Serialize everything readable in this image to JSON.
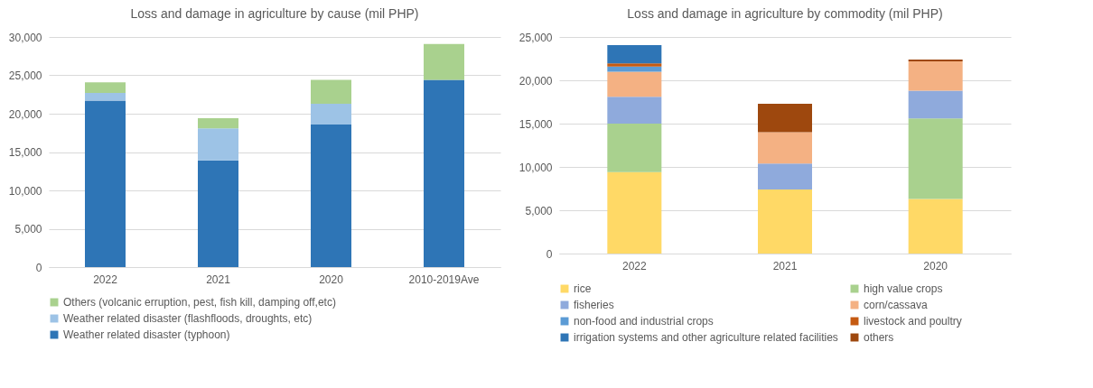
{
  "chart_data": [
    {
      "type": "bar",
      "stacked": true,
      "title": "Loss and damage in agriculture by cause (mil PHP)",
      "categories": [
        "2022",
        "2021",
        "2020",
        "2010-2019Ave"
      ],
      "series": [
        {
          "name": "Weather related disaster (typhoon)",
          "color": "#2e75b6",
          "values": [
            21700,
            13900,
            18600,
            24400
          ]
        },
        {
          "name": "Weather related disaster (flashfloods, droughts, etc)",
          "color": "#9dc3e6",
          "values": [
            1000,
            4200,
            2700,
            null
          ]
        },
        {
          "name": "Others (volcanic erruption, pest, fish kill, damping off,etc)",
          "color": "#a9d18e",
          "values": [
            1400,
            1300,
            3100,
            4700
          ]
        }
      ],
      "ylim": [
        0,
        30000
      ],
      "yticks": [
        {
          "value": 0,
          "label": "0"
        },
        {
          "value": 5000,
          "label": "5,000"
        },
        {
          "value": 10000,
          "label": "10,000"
        },
        {
          "value": 15000,
          "label": "15,000"
        },
        {
          "value": 20000,
          "label": "20,000"
        },
        {
          "value": 25000,
          "label": "25,000"
        },
        {
          "value": 30000,
          "label": "30,000"
        }
      ],
      "grid": "y",
      "legend": "bottom"
    },
    {
      "type": "bar",
      "stacked": true,
      "title": "Loss and damage in agriculture by commodity (mil PHP)",
      "categories": [
        "2022",
        "2021",
        "2020"
      ],
      "series": [
        {
          "name": "rice",
          "color": "#ffd966",
          "values": [
            9400,
            7400,
            6300
          ]
        },
        {
          "name": "high value crops",
          "color": "#a9d18e",
          "values": [
            5600,
            null,
            9300
          ]
        },
        {
          "name": "fisheries",
          "color": "#8faadc",
          "values": [
            3100,
            3000,
            3200
          ]
        },
        {
          "name": "corn/cassava",
          "color": "#f4b183",
          "values": [
            2900,
            3600,
            3400
          ]
        },
        {
          "name": "non-food and industrial crops",
          "color": "#5b9bd5",
          "values": [
            600,
            null,
            null
          ]
        },
        {
          "name": "livestock and poultry",
          "color": "#c55a11",
          "values": [
            350,
            null,
            null
          ]
        },
        {
          "name": "irrigation systems and other agriculture related facilities",
          "color": "#2e75b6",
          "values": [
            2100,
            null,
            null
          ]
        },
        {
          "name": "others",
          "color": "#9e480e",
          "values": [
            null,
            3300,
            200
          ]
        }
      ],
      "ylim": [
        0,
        25000
      ],
      "yticks": [
        {
          "value": 0,
          "label": "0"
        },
        {
          "value": 5000,
          "label": "5,000"
        },
        {
          "value": 10000,
          "label": "10,000"
        },
        {
          "value": 15000,
          "label": "15,000"
        },
        {
          "value": 20000,
          "label": "20,000"
        },
        {
          "value": 25000,
          "label": "25,000"
        }
      ],
      "grid": "y",
      "legend": "bottom"
    }
  ]
}
